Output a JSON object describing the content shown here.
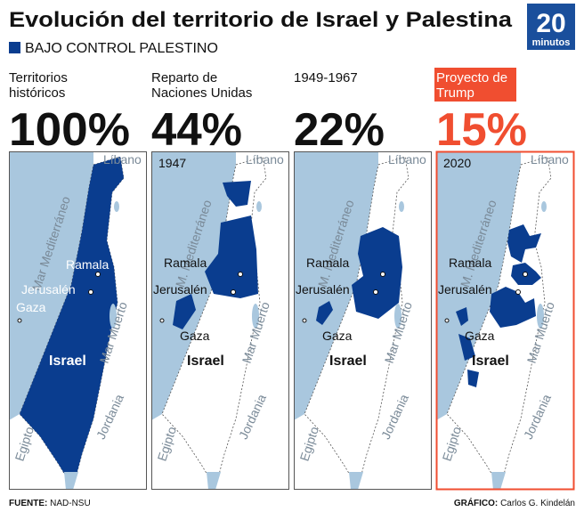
{
  "header": {
    "title": "Evolución del territorio de Israel y Palestina",
    "legend": "BAJO CONTROL PALESTINO"
  },
  "logo": {
    "number": "20",
    "text": "minutos"
  },
  "panels": [
    {
      "label": [
        "Territorios",
        "históricos"
      ],
      "percent": "100%",
      "map": {
        "lebanon": "Líbano",
        "sea": "Mar Mediterráneo",
        "ramallah": "Ramala",
        "jerusalem": "Jerusalén",
        "gaza": "Gaza",
        "israel": "Israel",
        "dead_sea": "Mar Muerto",
        "jordan": "Jordania",
        "egypt": "Egipto"
      }
    },
    {
      "label": [
        "Reparto de",
        "Naciones Unidas"
      ],
      "percent": "44%",
      "map": {
        "year": "1947",
        "lebanon": "Líbano",
        "sea": "M. Mediterráneo",
        "ramallah": "Ramala",
        "jerusalem": "Jerusalén",
        "gaza": "Gaza",
        "israel": "Israel",
        "dead_sea": "Mar Muerto",
        "jordan": "Jordania",
        "egypt": "Egipto"
      }
    },
    {
      "label": [
        "1949-1967"
      ],
      "percent": "22%",
      "map": {
        "lebanon": "Líbano",
        "sea": "M. Mediterráneo",
        "ramallah": "Ramala",
        "jerusalem": "Jerusalén",
        "gaza": "Gaza",
        "israel": "Israel",
        "dead_sea": "Mar Muerto",
        "jordan": "Jordania",
        "egypt": "Egipto"
      }
    },
    {
      "label": [
        "Proyecto de",
        "Trump"
      ],
      "percent": "15%",
      "map": {
        "year": "2020",
        "lebanon": "Líbano",
        "sea": "M. Mediterráneo",
        "ramallah": "Ramala",
        "jerusalem": "Jerusalén",
        "gaza": "Gaza",
        "israel": "Israel",
        "dead_sea": "Mar Muerto",
        "jordan": "Jordania",
        "egypt": "Egipto"
      }
    }
  ],
  "footer": {
    "source_label": "FUENTE:",
    "source": "NAD-NSU",
    "credit_label": "GRÁFICO:",
    "credit": "Carlos G. Kindelán"
  }
}
